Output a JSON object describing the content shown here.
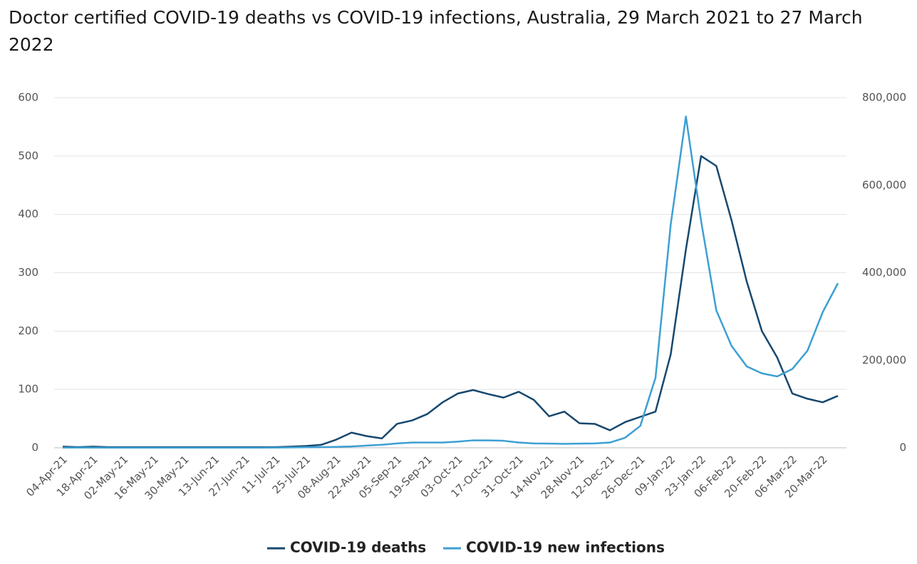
{
  "chart_data": {
    "type": "line",
    "title": "Doctor certified COVID-19 deaths vs COVID-19 infections, Australia, 29 March 2021 to 27 March 2022",
    "categories": [
      "04-Apr-21",
      null,
      "18-Apr-21",
      null,
      "02-May-21",
      null,
      "16-May-21",
      null,
      "30-May-21",
      null,
      "13-Jun-21",
      null,
      "27-Jun-21",
      null,
      "11-Jul-21",
      null,
      "25-Jul-21",
      null,
      "08-Aug-21",
      null,
      "22-Aug-21",
      null,
      "05-Sep-21",
      null,
      "19-Sep-21",
      null,
      "03-Oct-21",
      null,
      "17-Oct-21",
      null,
      "31-Oct-21",
      null,
      "14-Nov-21",
      null,
      "28-Nov-21",
      null,
      "12-Dec-21",
      null,
      "26-Dec-21",
      null,
      "09-Jan-22",
      null,
      "23-Jan-22",
      null,
      "06-Feb-22",
      null,
      "20-Feb-22",
      null,
      "06-Mar-22",
      null,
      "20-Mar-22",
      null
    ],
    "series": [
      {
        "name": "COVID-19 deaths",
        "color": "#17486e",
        "axis": "y",
        "values": [
          2,
          1,
          2,
          1,
          1,
          1,
          1,
          1,
          1,
          1,
          1,
          1,
          1,
          1,
          1,
          2,
          3,
          5,
          14,
          26,
          20,
          16,
          41,
          47,
          58,
          78,
          93,
          99,
          92,
          86,
          96,
          82,
          54,
          62,
          42,
          41,
          30,
          44,
          53,
          62,
          160,
          340,
          500,
          483,
          390,
          285,
          200,
          155,
          93,
          84,
          78,
          89
        ]
      },
      {
        "name": "COVID-19 new infections",
        "color": "#3d9fd3",
        "axis": "y2",
        "values": [
          500,
          400,
          400,
          300,
          300,
          300,
          300,
          300,
          300,
          300,
          300,
          300,
          300,
          300,
          500,
          800,
          1200,
          1500,
          2000,
          3000,
          5000,
          7000,
          10000,
          12000,
          12000,
          12000,
          14000,
          17000,
          17000,
          16000,
          12000,
          10000,
          9500,
          9000,
          9500,
          10000,
          12000,
          23000,
          50000,
          160000,
          510000,
          757000,
          518000,
          314000,
          233000,
          186000,
          170000,
          163000,
          180000,
          222000,
          310000,
          376000
        ]
      }
    ],
    "ylim": [
      0,
      600
    ],
    "yticks": [
      0,
      100,
      200,
      300,
      400,
      500,
      600
    ],
    "y2lim": [
      0,
      800000
    ],
    "y2ticks": [
      0,
      {
        "value": 200000,
        "label": "200,000"
      },
      {
        "value": 400000,
        "label": "400,000"
      },
      {
        "value": 600000,
        "label": "600,000"
      },
      {
        "value": 800000,
        "label": "800,000"
      }
    ],
    "grid": true
  }
}
